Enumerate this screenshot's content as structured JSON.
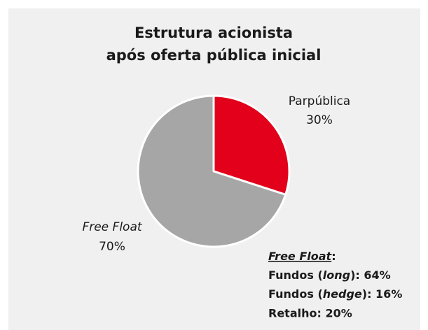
{
  "chart_data": {
    "type": "pie",
    "title": [
      "Estrutura acionista",
      "após oferta pública inicial"
    ],
    "categories": [
      "Parpública",
      "Free Float"
    ],
    "values": [
      30,
      70
    ],
    "value_labels": [
      "30%",
      "70%"
    ],
    "colors": [
      "#e2001a",
      "#a6a6a6"
    ],
    "annotation": {
      "heading": "Free Float",
      "heading_suffix": ":",
      "lines": [
        {
          "before": "Fundos (",
          "em": "long",
          "after": "): 64%"
        },
        {
          "before": "Fundos (",
          "em": "hedge",
          "after": "): 16%"
        },
        "Retalho: 20%"
      ]
    }
  }
}
